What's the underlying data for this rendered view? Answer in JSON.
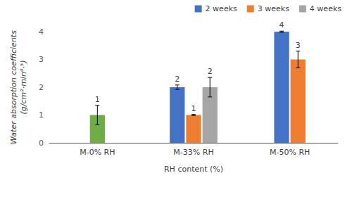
{
  "chart_data": {
    "type": "bar",
    "x_label": "RH content (%)",
    "y_label": "Water absorption coefficients\n(g/cm²·min⁰·⁵)",
    "categories": [
      "M-0% RH",
      "M-33% RH",
      "M-50% RH"
    ],
    "series": [
      {
        "color": "#70ad47",
        "values": [
          1,
          null,
          null
        ],
        "errors": [
          0.35,
          null,
          null
        ]
      },
      {
        "name": "2 weeks",
        "color": "#4472c4",
        "values": [
          null,
          2,
          4
        ],
        "errors": [
          null,
          0.08,
          0.02
        ]
      },
      {
        "name": "3 weeks",
        "color": "#ed7d31",
        "values": [
          null,
          1,
          3
        ],
        "errors": [
          null,
          0.02,
          0.3
        ]
      },
      {
        "name": "4 weeks",
        "color": "#a5a5a5",
        "values": [
          null,
          2,
          null
        ],
        "errors": [
          null,
          0.35,
          null
        ]
      }
    ],
    "ylim": [
      0,
      4
    ],
    "yticks": [
      0,
      1,
      2,
      3,
      4
    ],
    "grid": false,
    "legend": "top-right",
    "data_labels": true
  }
}
